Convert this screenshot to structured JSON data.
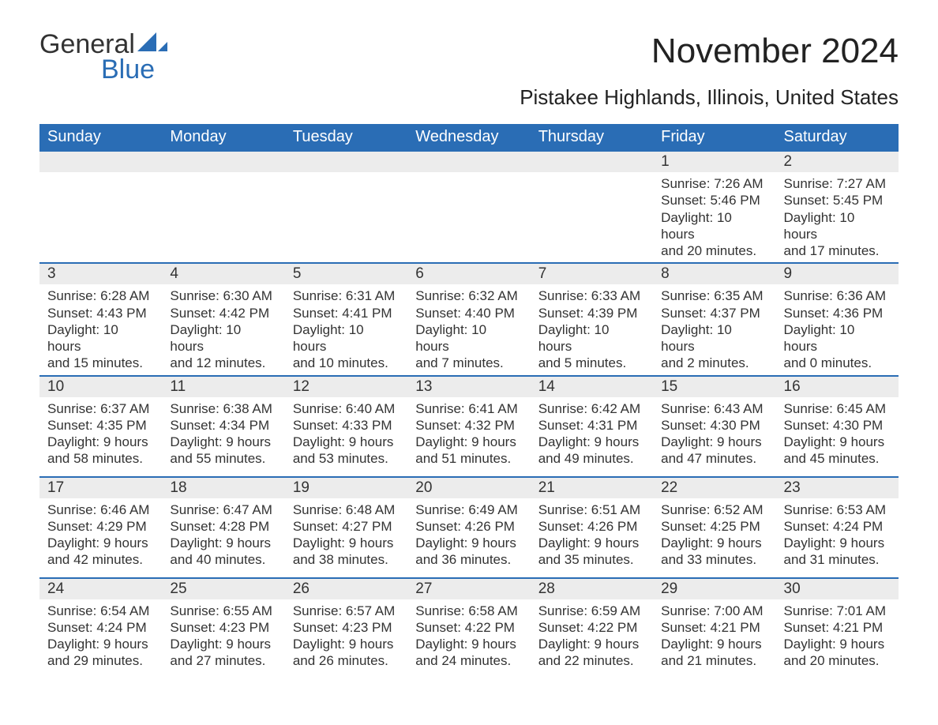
{
  "brand": {
    "word1": "General",
    "word2": "Blue",
    "accent_color": "#2a6db5"
  },
  "title": "November 2024",
  "location": "Pistakee Highlands, Illinois, United States",
  "colors": {
    "header_bg": "#2a6db5",
    "header_text": "#ffffff",
    "daynum_bg": "#ececec",
    "text": "#333333",
    "page_bg": "#ffffff",
    "row_border": "#2a6db5"
  },
  "day_headers": [
    "Sunday",
    "Monday",
    "Tuesday",
    "Wednesday",
    "Thursday",
    "Friday",
    "Saturday"
  ],
  "weeks": [
    [
      null,
      null,
      null,
      null,
      null,
      {
        "n": "1",
        "sunrise": "Sunrise: 7:26 AM",
        "sunset": "Sunset: 5:46 PM",
        "day1": "Daylight: 10 hours",
        "day2": "and 20 minutes."
      },
      {
        "n": "2",
        "sunrise": "Sunrise: 7:27 AM",
        "sunset": "Sunset: 5:45 PM",
        "day1": "Daylight: 10 hours",
        "day2": "and 17 minutes."
      }
    ],
    [
      {
        "n": "3",
        "sunrise": "Sunrise: 6:28 AM",
        "sunset": "Sunset: 4:43 PM",
        "day1": "Daylight: 10 hours",
        "day2": "and 15 minutes."
      },
      {
        "n": "4",
        "sunrise": "Sunrise: 6:30 AM",
        "sunset": "Sunset: 4:42 PM",
        "day1": "Daylight: 10 hours",
        "day2": "and 12 minutes."
      },
      {
        "n": "5",
        "sunrise": "Sunrise: 6:31 AM",
        "sunset": "Sunset: 4:41 PM",
        "day1": "Daylight: 10 hours",
        "day2": "and 10 minutes."
      },
      {
        "n": "6",
        "sunrise": "Sunrise: 6:32 AM",
        "sunset": "Sunset: 4:40 PM",
        "day1": "Daylight: 10 hours",
        "day2": "and 7 minutes."
      },
      {
        "n": "7",
        "sunrise": "Sunrise: 6:33 AM",
        "sunset": "Sunset: 4:39 PM",
        "day1": "Daylight: 10 hours",
        "day2": "and 5 minutes."
      },
      {
        "n": "8",
        "sunrise": "Sunrise: 6:35 AM",
        "sunset": "Sunset: 4:37 PM",
        "day1": "Daylight: 10 hours",
        "day2": "and 2 minutes."
      },
      {
        "n": "9",
        "sunrise": "Sunrise: 6:36 AM",
        "sunset": "Sunset: 4:36 PM",
        "day1": "Daylight: 10 hours",
        "day2": "and 0 minutes."
      }
    ],
    [
      {
        "n": "10",
        "sunrise": "Sunrise: 6:37 AM",
        "sunset": "Sunset: 4:35 PM",
        "day1": "Daylight: 9 hours",
        "day2": "and 58 minutes."
      },
      {
        "n": "11",
        "sunrise": "Sunrise: 6:38 AM",
        "sunset": "Sunset: 4:34 PM",
        "day1": "Daylight: 9 hours",
        "day2": "and 55 minutes."
      },
      {
        "n": "12",
        "sunrise": "Sunrise: 6:40 AM",
        "sunset": "Sunset: 4:33 PM",
        "day1": "Daylight: 9 hours",
        "day2": "and 53 minutes."
      },
      {
        "n": "13",
        "sunrise": "Sunrise: 6:41 AM",
        "sunset": "Sunset: 4:32 PM",
        "day1": "Daylight: 9 hours",
        "day2": "and 51 minutes."
      },
      {
        "n": "14",
        "sunrise": "Sunrise: 6:42 AM",
        "sunset": "Sunset: 4:31 PM",
        "day1": "Daylight: 9 hours",
        "day2": "and 49 minutes."
      },
      {
        "n": "15",
        "sunrise": "Sunrise: 6:43 AM",
        "sunset": "Sunset: 4:30 PM",
        "day1": "Daylight: 9 hours",
        "day2": "and 47 minutes."
      },
      {
        "n": "16",
        "sunrise": "Sunrise: 6:45 AM",
        "sunset": "Sunset: 4:30 PM",
        "day1": "Daylight: 9 hours",
        "day2": "and 45 minutes."
      }
    ],
    [
      {
        "n": "17",
        "sunrise": "Sunrise: 6:46 AM",
        "sunset": "Sunset: 4:29 PM",
        "day1": "Daylight: 9 hours",
        "day2": "and 42 minutes."
      },
      {
        "n": "18",
        "sunrise": "Sunrise: 6:47 AM",
        "sunset": "Sunset: 4:28 PM",
        "day1": "Daylight: 9 hours",
        "day2": "and 40 minutes."
      },
      {
        "n": "19",
        "sunrise": "Sunrise: 6:48 AM",
        "sunset": "Sunset: 4:27 PM",
        "day1": "Daylight: 9 hours",
        "day2": "and 38 minutes."
      },
      {
        "n": "20",
        "sunrise": "Sunrise: 6:49 AM",
        "sunset": "Sunset: 4:26 PM",
        "day1": "Daylight: 9 hours",
        "day2": "and 36 minutes."
      },
      {
        "n": "21",
        "sunrise": "Sunrise: 6:51 AM",
        "sunset": "Sunset: 4:26 PM",
        "day1": "Daylight: 9 hours",
        "day2": "and 35 minutes."
      },
      {
        "n": "22",
        "sunrise": "Sunrise: 6:52 AM",
        "sunset": "Sunset: 4:25 PM",
        "day1": "Daylight: 9 hours",
        "day2": "and 33 minutes."
      },
      {
        "n": "23",
        "sunrise": "Sunrise: 6:53 AM",
        "sunset": "Sunset: 4:24 PM",
        "day1": "Daylight: 9 hours",
        "day2": "and 31 minutes."
      }
    ],
    [
      {
        "n": "24",
        "sunrise": "Sunrise: 6:54 AM",
        "sunset": "Sunset: 4:24 PM",
        "day1": "Daylight: 9 hours",
        "day2": "and 29 minutes."
      },
      {
        "n": "25",
        "sunrise": "Sunrise: 6:55 AM",
        "sunset": "Sunset: 4:23 PM",
        "day1": "Daylight: 9 hours",
        "day2": "and 27 minutes."
      },
      {
        "n": "26",
        "sunrise": "Sunrise: 6:57 AM",
        "sunset": "Sunset: 4:23 PM",
        "day1": "Daylight: 9 hours",
        "day2": "and 26 minutes."
      },
      {
        "n": "27",
        "sunrise": "Sunrise: 6:58 AM",
        "sunset": "Sunset: 4:22 PM",
        "day1": "Daylight: 9 hours",
        "day2": "and 24 minutes."
      },
      {
        "n": "28",
        "sunrise": "Sunrise: 6:59 AM",
        "sunset": "Sunset: 4:22 PM",
        "day1": "Daylight: 9 hours",
        "day2": "and 22 minutes."
      },
      {
        "n": "29",
        "sunrise": "Sunrise: 7:00 AM",
        "sunset": "Sunset: 4:21 PM",
        "day1": "Daylight: 9 hours",
        "day2": "and 21 minutes."
      },
      {
        "n": "30",
        "sunrise": "Sunrise: 7:01 AM",
        "sunset": "Sunset: 4:21 PM",
        "day1": "Daylight: 9 hours",
        "day2": "and 20 minutes."
      }
    ]
  ]
}
